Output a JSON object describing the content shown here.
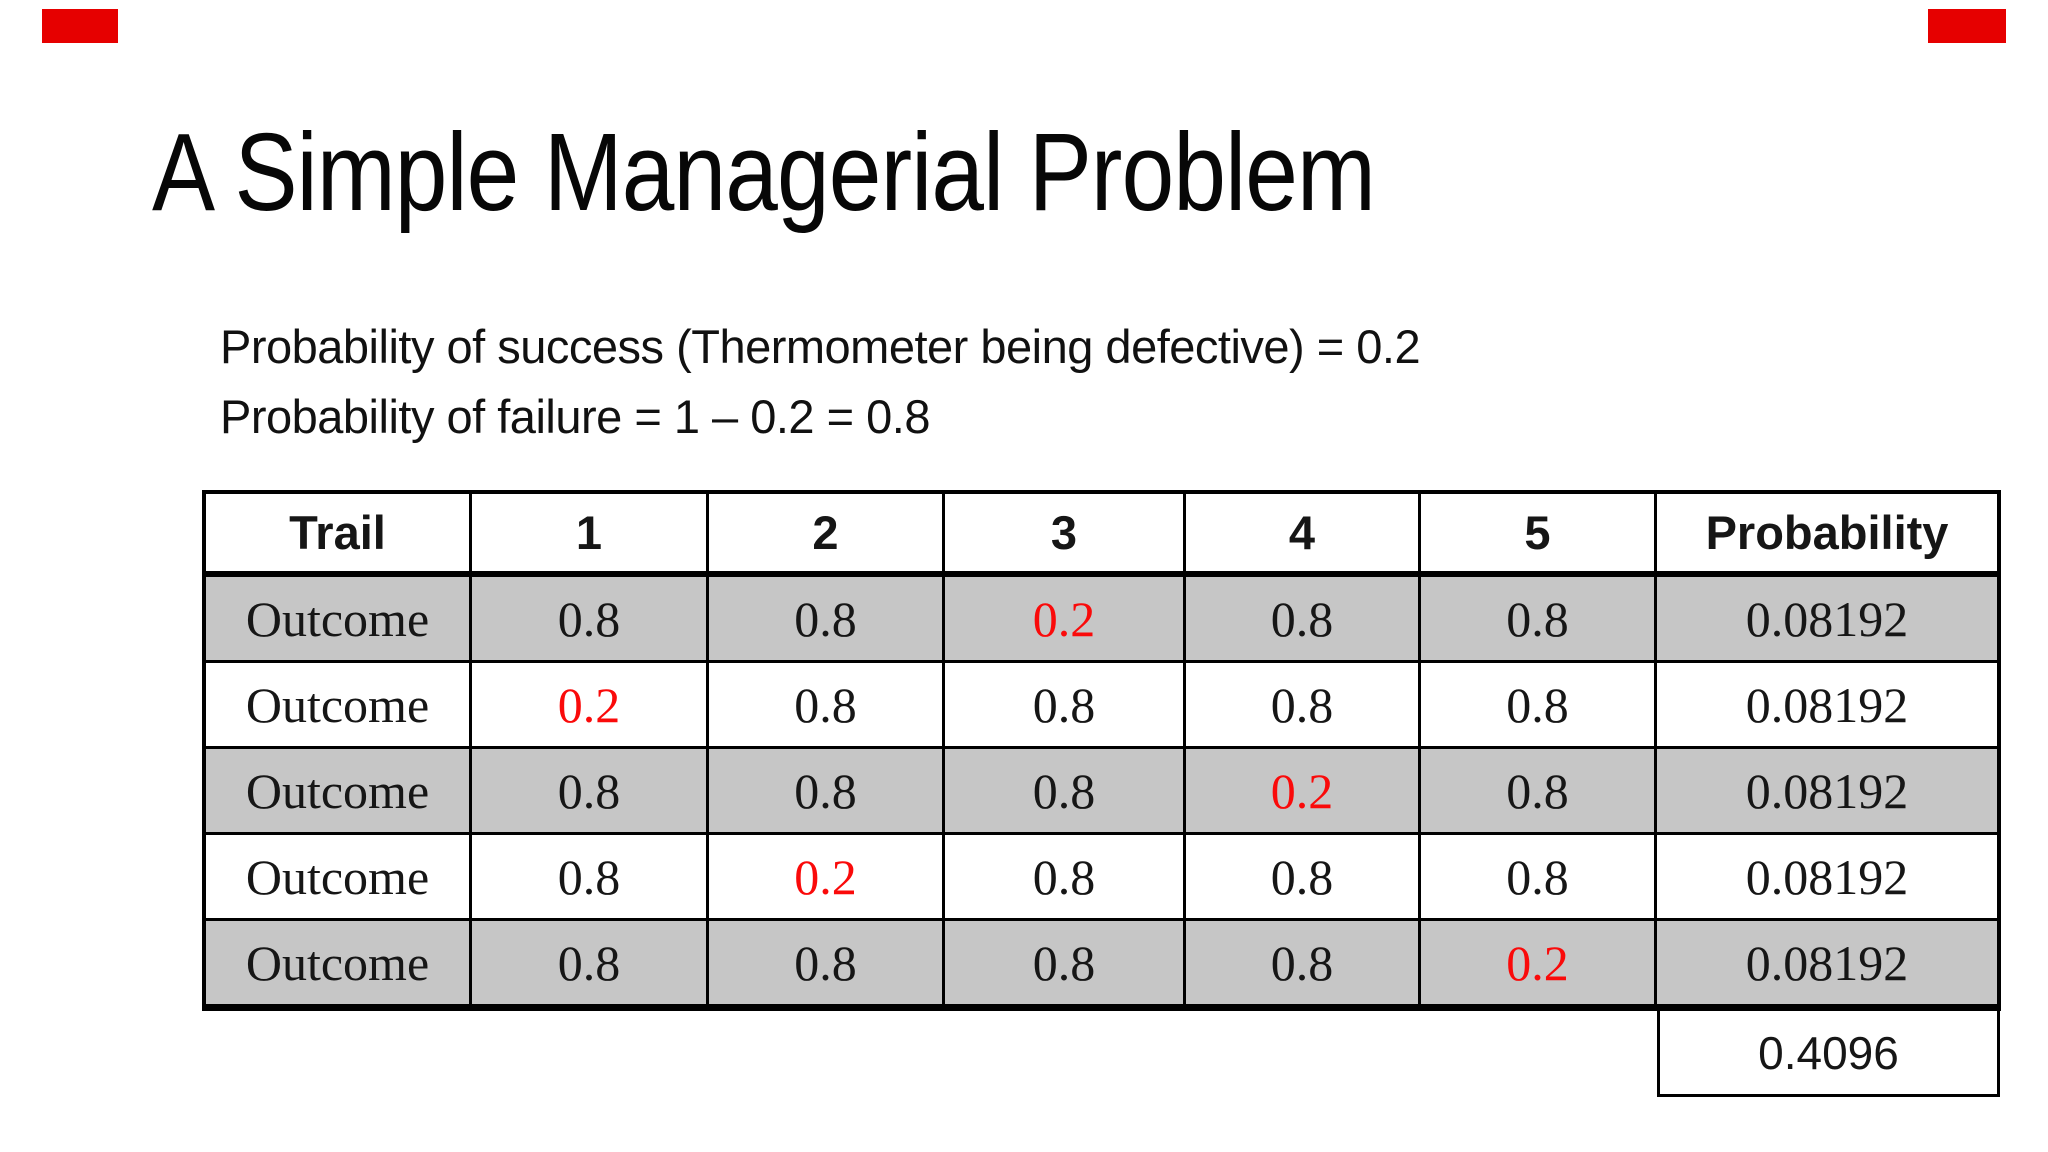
{
  "slide": {
    "title": "A Simple Managerial Problem",
    "intro_line1": "Probability of success (Thermometer being defective) = 0.2",
    "intro_line2": "Probability of failure = 1 – 0.2 = 0.8"
  },
  "decorations": {
    "corner_bar_color": "#e60000"
  },
  "colors": {
    "row_shade": "#c6c6c6",
    "highlight_red": "#fa0a0a",
    "border": "#000000"
  },
  "table": {
    "headers": {
      "trail": "Trail",
      "c1": "1",
      "c2": "2",
      "c3": "3",
      "c4": "4",
      "c5": "5",
      "prob": "Probability"
    },
    "rows": [
      {
        "label": "Outcome",
        "shaded": true,
        "cells": [
          {
            "v": "0.8",
            "hl": false
          },
          {
            "v": "0.8",
            "hl": false
          },
          {
            "v": "0.2",
            "hl": true
          },
          {
            "v": "0.8",
            "hl": false
          },
          {
            "v": "0.8",
            "hl": false
          }
        ],
        "prob": "0.08192"
      },
      {
        "label": "Outcome",
        "shaded": false,
        "cells": [
          {
            "v": "0.2",
            "hl": true
          },
          {
            "v": "0.8",
            "hl": false
          },
          {
            "v": "0.8",
            "hl": false
          },
          {
            "v": "0.8",
            "hl": false
          },
          {
            "v": "0.8",
            "hl": false
          }
        ],
        "prob": "0.08192"
      },
      {
        "label": "Outcome",
        "shaded": true,
        "cells": [
          {
            "v": "0.8",
            "hl": false
          },
          {
            "v": "0.8",
            "hl": false
          },
          {
            "v": "0.8",
            "hl": false
          },
          {
            "v": "0.2",
            "hl": true
          },
          {
            "v": "0.8",
            "hl": false
          }
        ],
        "prob": "0.08192"
      },
      {
        "label": "Outcome",
        "shaded": false,
        "cells": [
          {
            "v": "0.8",
            "hl": false
          },
          {
            "v": "0.2",
            "hl": true
          },
          {
            "v": "0.8",
            "hl": false
          },
          {
            "v": "0.8",
            "hl": false
          },
          {
            "v": "0.8",
            "hl": false
          }
        ],
        "prob": "0.08192"
      },
      {
        "label": "Outcome",
        "shaded": true,
        "cells": [
          {
            "v": "0.8",
            "hl": false
          },
          {
            "v": "0.8",
            "hl": false
          },
          {
            "v": "0.8",
            "hl": false
          },
          {
            "v": "0.8",
            "hl": false
          },
          {
            "v": "0.2",
            "hl": true
          }
        ],
        "prob": "0.08192"
      }
    ],
    "total": "0.4096"
  }
}
